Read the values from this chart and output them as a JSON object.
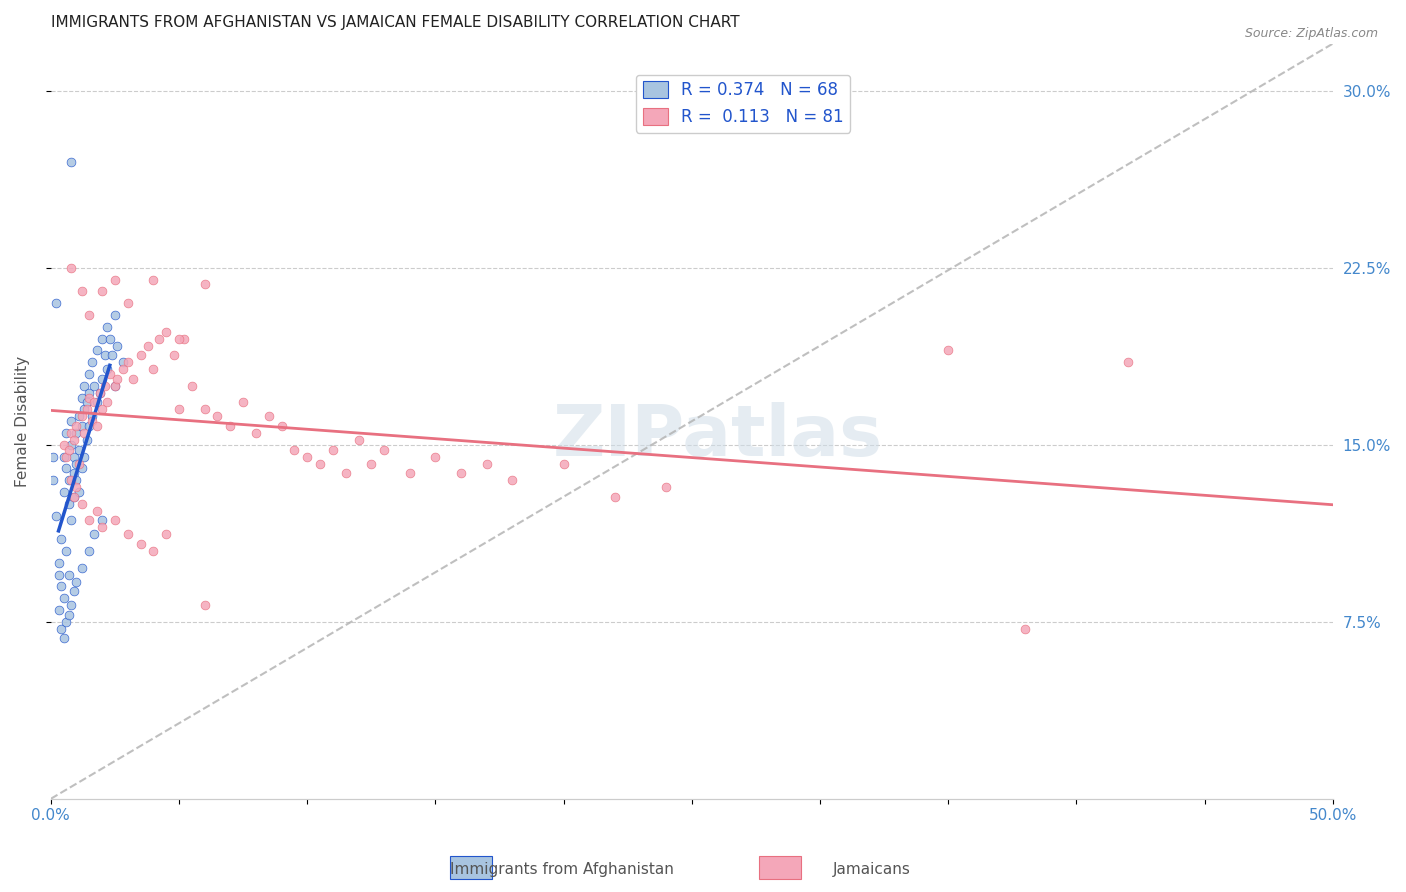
{
  "title": "IMMIGRANTS FROM AFGHANISTAN VS JAMAICAN FEMALE DISABILITY CORRELATION CHART",
  "source": "Source: ZipAtlas.com",
  "xlabel_bottom": "",
  "ylabel": "Female Disability",
  "xmin": 0.0,
  "xmax": 0.5,
  "ymin": 0.0,
  "ymax": 0.32,
  "yticks": [
    0.075,
    0.15,
    0.225,
    0.3
  ],
  "ytick_labels": [
    "7.5%",
    "15.0%",
    "22.5%",
    "30.0%"
  ],
  "xticks": [
    0.0,
    0.05,
    0.1,
    0.15,
    0.2,
    0.25,
    0.3,
    0.35,
    0.4,
    0.45,
    0.5
  ],
  "xtick_labels": [
    "0.0%",
    "",
    "",
    "",
    "",
    "",
    "",
    "",
    "",
    "",
    "50.0%"
  ],
  "legend_entries": [
    "Immigrants from Afghanistan",
    "Jamaicans"
  ],
  "r_afghanistan": 0.374,
  "n_afghanistan": 68,
  "r_jamaicans": 0.113,
  "n_jamaicans": 81,
  "color_afghanistan": "#a8c4e0",
  "color_jamaicans": "#f4a7b9",
  "line_color_afghanistan": "#2255cc",
  "line_color_jamaicans": "#e87080",
  "diagonal_color": "#b0b0b0",
  "watermark": "ZIPatlas",
  "title_fontsize": 11,
  "axis_label_color": "#4488cc",
  "tick_label_color": "#4488cc",
  "afghanistan_scatter": [
    [
      0.002,
      0.12
    ],
    [
      0.003,
      0.095
    ],
    [
      0.004,
      0.11
    ],
    [
      0.005,
      0.13
    ],
    [
      0.005,
      0.145
    ],
    [
      0.006,
      0.155
    ],
    [
      0.006,
      0.14
    ],
    [
      0.007,
      0.125
    ],
    [
      0.007,
      0.135
    ],
    [
      0.008,
      0.15
    ],
    [
      0.008,
      0.16
    ],
    [
      0.009,
      0.145
    ],
    [
      0.009,
      0.138
    ],
    [
      0.01,
      0.155
    ],
    [
      0.01,
      0.142
    ],
    [
      0.011,
      0.148
    ],
    [
      0.011,
      0.162
    ],
    [
      0.012,
      0.158
    ],
    [
      0.012,
      0.17
    ],
    [
      0.013,
      0.165
    ],
    [
      0.013,
      0.175
    ],
    [
      0.014,
      0.168
    ],
    [
      0.015,
      0.172
    ],
    [
      0.015,
      0.18
    ],
    [
      0.016,
      0.185
    ],
    [
      0.017,
      0.175
    ],
    [
      0.018,
      0.19
    ],
    [
      0.02,
      0.195
    ],
    [
      0.021,
      0.188
    ],
    [
      0.022,
      0.2
    ],
    [
      0.023,
      0.195
    ],
    [
      0.025,
      0.205
    ],
    [
      0.003,
      0.1
    ],
    [
      0.004,
      0.09
    ],
    [
      0.005,
      0.085
    ],
    [
      0.006,
      0.105
    ],
    [
      0.007,
      0.095
    ],
    [
      0.008,
      0.118
    ],
    [
      0.009,
      0.128
    ],
    [
      0.01,
      0.135
    ],
    [
      0.011,
      0.13
    ],
    [
      0.012,
      0.14
    ],
    [
      0.013,
      0.145
    ],
    [
      0.014,
      0.152
    ],
    [
      0.015,
      0.158
    ],
    [
      0.016,
      0.162
    ],
    [
      0.018,
      0.168
    ],
    [
      0.019,
      0.172
    ],
    [
      0.02,
      0.178
    ],
    [
      0.022,
      0.182
    ],
    [
      0.024,
      0.188
    ],
    [
      0.026,
      0.192
    ],
    [
      0.003,
      0.08
    ],
    [
      0.004,
      0.072
    ],
    [
      0.005,
      0.068
    ],
    [
      0.006,
      0.075
    ],
    [
      0.007,
      0.078
    ],
    [
      0.008,
      0.082
    ],
    [
      0.009,
      0.088
    ],
    [
      0.01,
      0.092
    ],
    [
      0.012,
      0.098
    ],
    [
      0.015,
      0.105
    ],
    [
      0.017,
      0.112
    ],
    [
      0.02,
      0.118
    ],
    [
      0.008,
      0.27
    ],
    [
      0.002,
      0.21
    ],
    [
      0.025,
      0.175
    ],
    [
      0.028,
      0.185
    ],
    [
      0.001,
      0.145
    ],
    [
      0.001,
      0.135
    ]
  ],
  "jamaicans_scatter": [
    [
      0.005,
      0.15
    ],
    [
      0.006,
      0.145
    ],
    [
      0.007,
      0.148
    ],
    [
      0.008,
      0.155
    ],
    [
      0.009,
      0.152
    ],
    [
      0.01,
      0.158
    ],
    [
      0.011,
      0.142
    ],
    [
      0.012,
      0.162
    ],
    [
      0.013,
      0.155
    ],
    [
      0.014,
      0.165
    ],
    [
      0.015,
      0.17
    ],
    [
      0.016,
      0.16
    ],
    [
      0.017,
      0.168
    ],
    [
      0.018,
      0.158
    ],
    [
      0.019,
      0.172
    ],
    [
      0.02,
      0.165
    ],
    [
      0.021,
      0.175
    ],
    [
      0.022,
      0.168
    ],
    [
      0.023,
      0.18
    ],
    [
      0.025,
      0.175
    ],
    [
      0.026,
      0.178
    ],
    [
      0.028,
      0.182
    ],
    [
      0.03,
      0.185
    ],
    [
      0.032,
      0.178
    ],
    [
      0.035,
      0.188
    ],
    [
      0.038,
      0.192
    ],
    [
      0.04,
      0.182
    ],
    [
      0.042,
      0.195
    ],
    [
      0.045,
      0.198
    ],
    [
      0.048,
      0.188
    ],
    [
      0.05,
      0.165
    ],
    [
      0.052,
      0.195
    ],
    [
      0.055,
      0.175
    ],
    [
      0.06,
      0.165
    ],
    [
      0.065,
      0.162
    ],
    [
      0.07,
      0.158
    ],
    [
      0.075,
      0.168
    ],
    [
      0.08,
      0.155
    ],
    [
      0.085,
      0.162
    ],
    [
      0.09,
      0.158
    ],
    [
      0.095,
      0.148
    ],
    [
      0.1,
      0.145
    ],
    [
      0.105,
      0.142
    ],
    [
      0.11,
      0.148
    ],
    [
      0.115,
      0.138
    ],
    [
      0.12,
      0.152
    ],
    [
      0.125,
      0.142
    ],
    [
      0.13,
      0.148
    ],
    [
      0.14,
      0.138
    ],
    [
      0.15,
      0.145
    ],
    [
      0.16,
      0.138
    ],
    [
      0.17,
      0.142
    ],
    [
      0.18,
      0.135
    ],
    [
      0.2,
      0.142
    ],
    [
      0.22,
      0.128
    ],
    [
      0.24,
      0.132
    ],
    [
      0.008,
      0.135
    ],
    [
      0.009,
      0.128
    ],
    [
      0.01,
      0.132
    ],
    [
      0.012,
      0.125
    ],
    [
      0.015,
      0.118
    ],
    [
      0.018,
      0.122
    ],
    [
      0.02,
      0.115
    ],
    [
      0.025,
      0.118
    ],
    [
      0.03,
      0.112
    ],
    [
      0.035,
      0.108
    ],
    [
      0.04,
      0.105
    ],
    [
      0.045,
      0.112
    ],
    [
      0.008,
      0.225
    ],
    [
      0.012,
      0.215
    ],
    [
      0.015,
      0.205
    ],
    [
      0.02,
      0.215
    ],
    [
      0.025,
      0.22
    ],
    [
      0.03,
      0.21
    ],
    [
      0.04,
      0.22
    ],
    [
      0.05,
      0.195
    ],
    [
      0.06,
      0.218
    ],
    [
      0.35,
      0.19
    ],
    [
      0.42,
      0.185
    ],
    [
      0.06,
      0.082
    ],
    [
      0.38,
      0.072
    ]
  ]
}
